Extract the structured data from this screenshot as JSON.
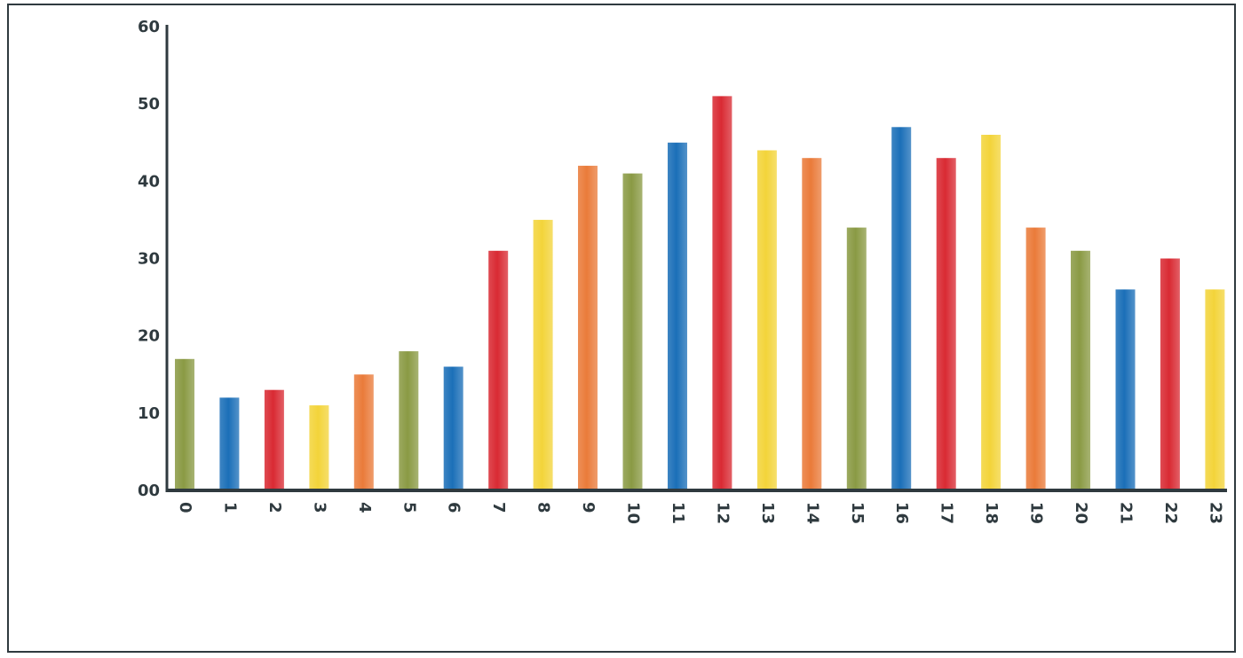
{
  "chart_data": {
    "type": "bar",
    "title": "",
    "xlabel": "",
    "ylabel": "",
    "ylim": [
      0,
      60
    ],
    "yticks": [
      "00",
      "10",
      "20",
      "30",
      "40",
      "50",
      "60"
    ],
    "yticks_values": [
      0,
      10,
      20,
      30,
      40,
      50,
      60
    ],
    "grid": false,
    "legend": "none",
    "categories": [
      "0",
      "1",
      "2",
      "3",
      "4",
      "5",
      "6",
      "7",
      "8",
      "9",
      "10",
      "11",
      "12",
      "13",
      "14",
      "15",
      "16",
      "17",
      "18",
      "19",
      "20",
      "21",
      "22",
      "23"
    ],
    "values": [
      17,
      12,
      13,
      11,
      15,
      18,
      16,
      31,
      35,
      42,
      41,
      45,
      51,
      44,
      43,
      34,
      47,
      43,
      46,
      34,
      31,
      26,
      30,
      26
    ],
    "bar_colors": [
      "#8a9a44",
      "#1b6fb8",
      "#d92a33",
      "#f3d43a",
      "#ea7b3a",
      "#8a9a44",
      "#1b6fb8",
      "#d92a33",
      "#f3d43a",
      "#ea7b3a",
      "#8a9a44",
      "#1b6fb8",
      "#d92a33",
      "#f3d43a",
      "#ea7b3a",
      "#8a9a44",
      "#1b6fb8",
      "#d92a33",
      "#f3d43a",
      "#ea7b3a",
      "#8a9a44",
      "#1b6fb8",
      "#d92a33",
      "#f3d43a"
    ]
  },
  "colors": {
    "axis": "#2f3a3f",
    "frame": "#2f3a3f",
    "background": "#ffffff"
  }
}
